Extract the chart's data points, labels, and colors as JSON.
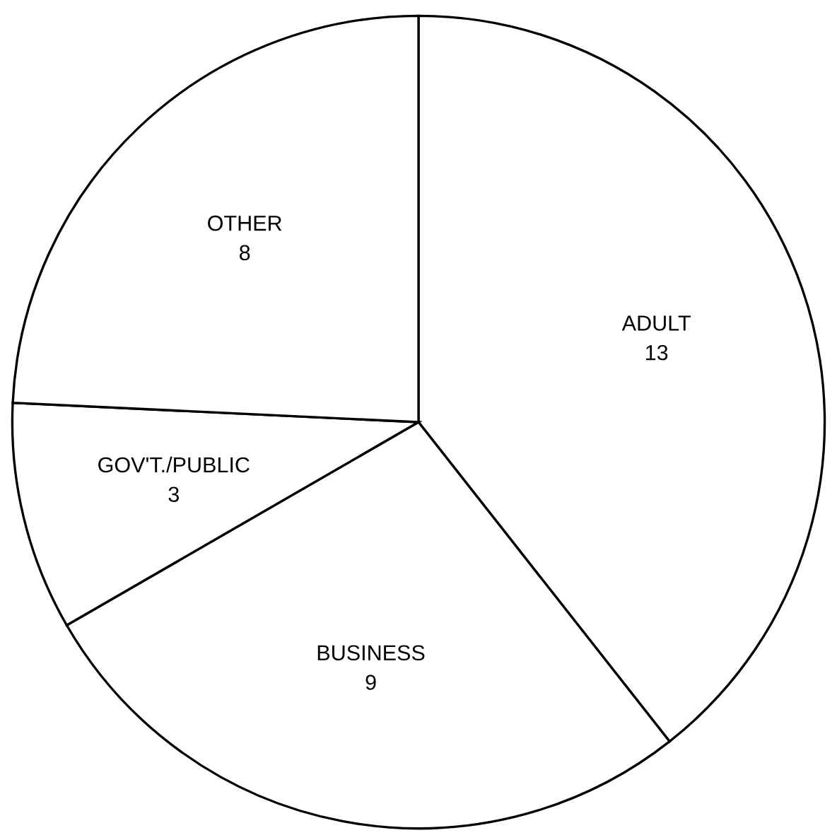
{
  "chart_data": {
    "type": "pie",
    "categories": [
      "ADULT",
      "BUSINESS",
      "GOV'T./PUBLIC",
      "OTHER"
    ],
    "values": [
      13,
      9,
      3,
      8
    ],
    "colors": [
      "#ffffff",
      "#ffffff",
      "#ffffff",
      "#ffffff"
    ],
    "data_labels": true,
    "legend": false
  }
}
